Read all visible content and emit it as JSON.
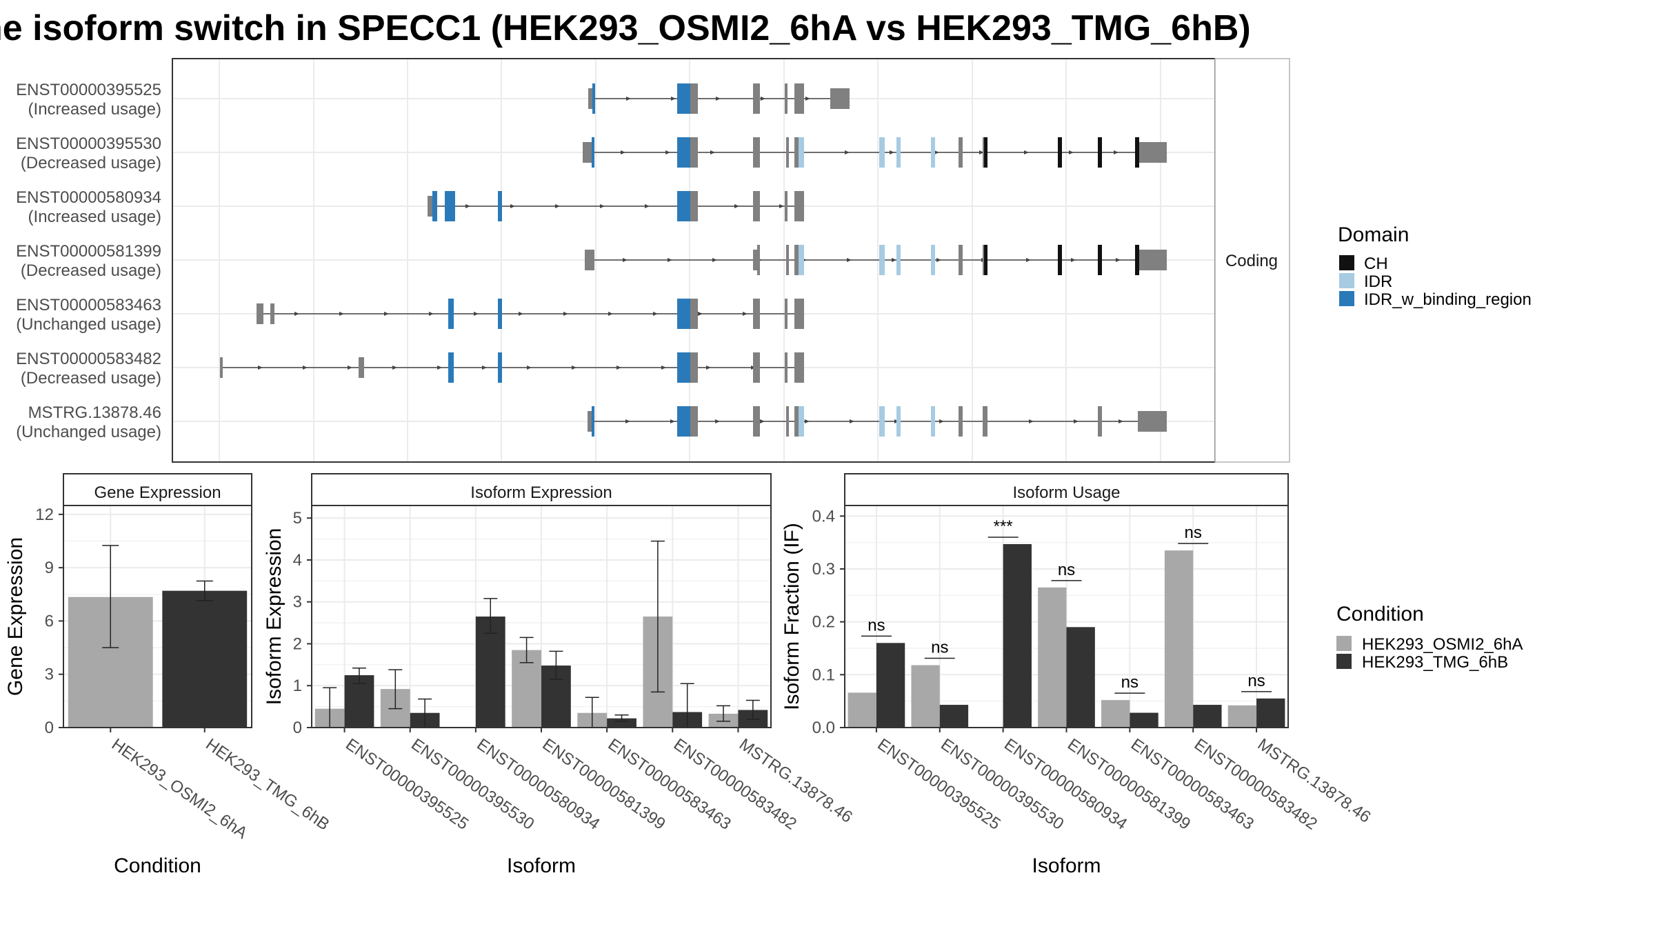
{
  "title": "ne isoform switch in SPECC1 (HEK293_OSMI2_6hA vs HEK293_TMG_6hB)",
  "colors": {
    "exon": "#808080",
    "CH": "#111111",
    "IDR": "#a6cbe2",
    "IDR_w_binding_region": "#2a7ab9",
    "condA": "#a8a8a8",
    "condB": "#333333"
  },
  "structure_strip": "Coding",
  "isoform_labels": [
    {
      "id": "ENST00000395525",
      "status": "(Increased usage)"
    },
    {
      "id": "ENST00000395530",
      "status": "(Decreased usage)"
    },
    {
      "id": "ENST00000580934",
      "status": "(Increased usage)"
    },
    {
      "id": "ENST00000581399",
      "status": "(Decreased usage)"
    },
    {
      "id": "ENST00000583463",
      "status": "(Unchanged usage)"
    },
    {
      "id": "ENST00000583482",
      "status": "(Decreased usage)"
    },
    {
      "id": "MSTRG.13878.46",
      "status": "(Unchanged usage)"
    }
  ],
  "domain_legend": {
    "title": "Domain",
    "items": [
      {
        "label": "CH",
        "color_key": "CH"
      },
      {
        "label": "IDR",
        "color_key": "IDR"
      },
      {
        "label": "IDR_w_binding_region",
        "color_key": "IDR_w_binding_region"
      }
    ]
  },
  "condition_legend": {
    "title": "Condition",
    "items": [
      {
        "label": "HEK293_OSMI2_6hA",
        "color_key": "condA"
      },
      {
        "label": "HEK293_TMG_6hB",
        "color_key": "condB"
      }
    ]
  },
  "chart_data": [
    {
      "type": "bar",
      "panel": "Gene Expression",
      "xlabel": "Condition",
      "ylabel": "Gene Expression",
      "ylim": [
        0,
        12.5
      ],
      "yticks": [
        0,
        3,
        6,
        9,
        12
      ],
      "categories": [
        "HEK293_OSMI2_6hA",
        "HEK293_TMG_6hB"
      ],
      "values": [
        7.35,
        7.7
      ],
      "err_low": [
        4.5,
        7.15
      ],
      "err_high": [
        10.25,
        8.25
      ]
    },
    {
      "type": "bar",
      "panel": "Isoform Expression",
      "xlabel": "Isoform",
      "ylabel": "Isoform Expression",
      "ylim": [
        0,
        5.3
      ],
      "yticks": [
        0,
        1,
        2,
        3,
        4,
        5
      ],
      "categories": [
        "ENST00000395525",
        "ENST00000395530",
        "ENST00000580934",
        "ENST00000581399",
        "ENST00000583463",
        "ENST00000583482",
        "MSTRG.13878.46"
      ],
      "series": [
        {
          "name": "HEK293_OSMI2_6hA",
          "values": [
            0.45,
            0.92,
            0.0,
            1.85,
            0.35,
            2.65,
            0.33
          ],
          "err_low": [
            0.0,
            0.45,
            0.0,
            1.55,
            0.0,
            0.85,
            0.15
          ],
          "err_high": [
            0.95,
            1.38,
            0.0,
            2.15,
            0.72,
            4.45,
            0.52
          ]
        },
        {
          "name": "HEK293_TMG_6hB",
          "values": [
            1.25,
            0.35,
            2.65,
            1.48,
            0.22,
            0.37,
            0.42
          ],
          "err_low": [
            1.05,
            0.0,
            2.25,
            1.15,
            0.15,
            0.0,
            0.2
          ],
          "err_high": [
            1.42,
            0.68,
            3.08,
            1.82,
            0.3,
            1.05,
            0.65
          ]
        }
      ]
    },
    {
      "type": "bar",
      "panel": "Isoform Usage",
      "xlabel": "Isoform",
      "ylabel": "Isoform Fraction (IF)",
      "ylim": [
        0,
        0.42
      ],
      "yticks": [
        0.0,
        0.1,
        0.2,
        0.3,
        0.4
      ],
      "categories": [
        "ENST00000395525",
        "ENST00000395530",
        "ENST00000580934",
        "ENST00000581399",
        "ENST00000583463",
        "ENST00000583482",
        "MSTRG.13878.46"
      ],
      "series": [
        {
          "name": "HEK293_OSMI2_6hA",
          "values": [
            0.066,
            0.118,
            0.0,
            0.265,
            0.052,
            0.335,
            0.042
          ]
        },
        {
          "name": "HEK293_TMG_6hB",
          "values": [
            0.16,
            0.043,
            0.347,
            0.19,
            0.028,
            0.043,
            0.055
          ]
        }
      ],
      "significance": [
        "ns",
        "ns",
        "***",
        "ns",
        "ns",
        "ns",
        "ns"
      ]
    }
  ]
}
